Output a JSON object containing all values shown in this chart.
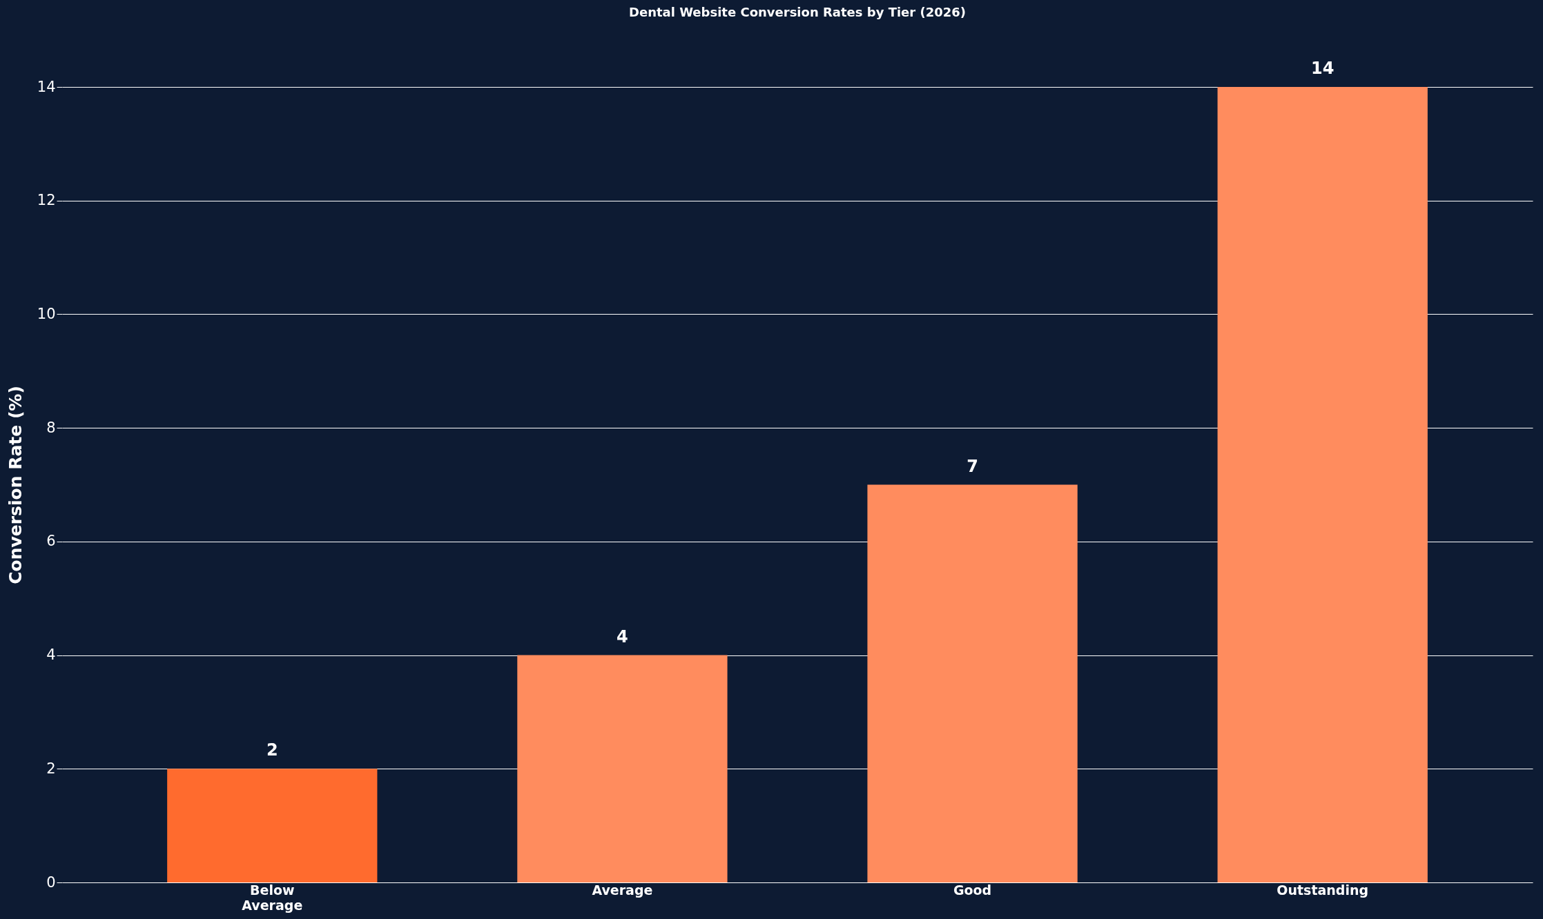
{
  "chart_data": {
    "type": "bar",
    "title": "Dental Website Conversion Rates by Tier (2026)",
    "ylabel": "Conversion Rate (%)",
    "categories": [
      "Below Average",
      "Average",
      "Good",
      "Outstanding"
    ],
    "values": [
      2,
      4,
      7,
      14
    ],
    "colors": [
      "#ff6b2e",
      "#ff8c5e",
      "#ff8c5e",
      "#ff8c5e"
    ],
    "ylim": [
      0,
      14
    ],
    "yticks": [
      0,
      2,
      4,
      6,
      8,
      10,
      12,
      14
    ],
    "data_labels": true,
    "grid": "y"
  }
}
